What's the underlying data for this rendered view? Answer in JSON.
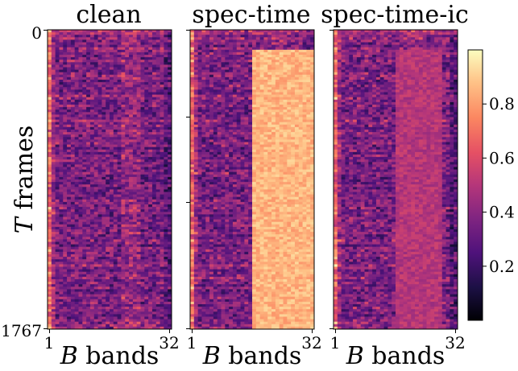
{
  "figure": {
    "ylabel_var": "T",
    "ylabel_rest": " frames",
    "xlabel_var": "B",
    "xlabel_rest": " bands"
  },
  "chart_data": [
    {
      "type": "heatmap",
      "title": "clean",
      "bands": 32,
      "frames": 1767,
      "x_ticks": [
        "1",
        "32"
      ],
      "y_ticks": [
        "0",
        "1767"
      ],
      "colormap": "magma",
      "value_range": [
        0,
        1
      ],
      "pattern": "mostly low values (0.1-0.5) with faint brighter streaks near band 1-2 and bands 20-24"
    },
    {
      "type": "heatmap",
      "title": "spec-time",
      "bands": 32,
      "frames": 1767,
      "x_ticks": [
        "1",
        "32"
      ],
      "y_ticks": [],
      "colormap": "magma",
      "value_range": [
        0,
        1
      ],
      "masked_block": {
        "bands": [
          17,
          32
        ],
        "frames": [
          110,
          1767
        ],
        "value_approx": 0.85
      },
      "pattern": "left bands similar to clean; bright block (~0.8-0.9) over bands 17-32 below frame ~110"
    },
    {
      "type": "heatmap",
      "title": "spec-time-ic",
      "bands": 32,
      "frames": 1767,
      "x_ticks": [
        "1",
        "32"
      ],
      "y_ticks": [],
      "colormap": "magma",
      "value_range": [
        0,
        1
      ],
      "masked_block": {
        "bands": [
          17,
          28
        ],
        "frames": [
          110,
          1767
        ],
        "value_approx": 0.5
      },
      "pattern": "similar to clean with a moderately brighter block over bands 17-28"
    }
  ],
  "colorbar": {
    "ticks": [
      0.2,
      0.4,
      0.6,
      0.8
    ],
    "tick_labels": [
      "0.2",
      "0.4",
      "0.6",
      "0.8"
    ],
    "range": [
      0,
      1
    ],
    "colormap": "magma"
  }
}
